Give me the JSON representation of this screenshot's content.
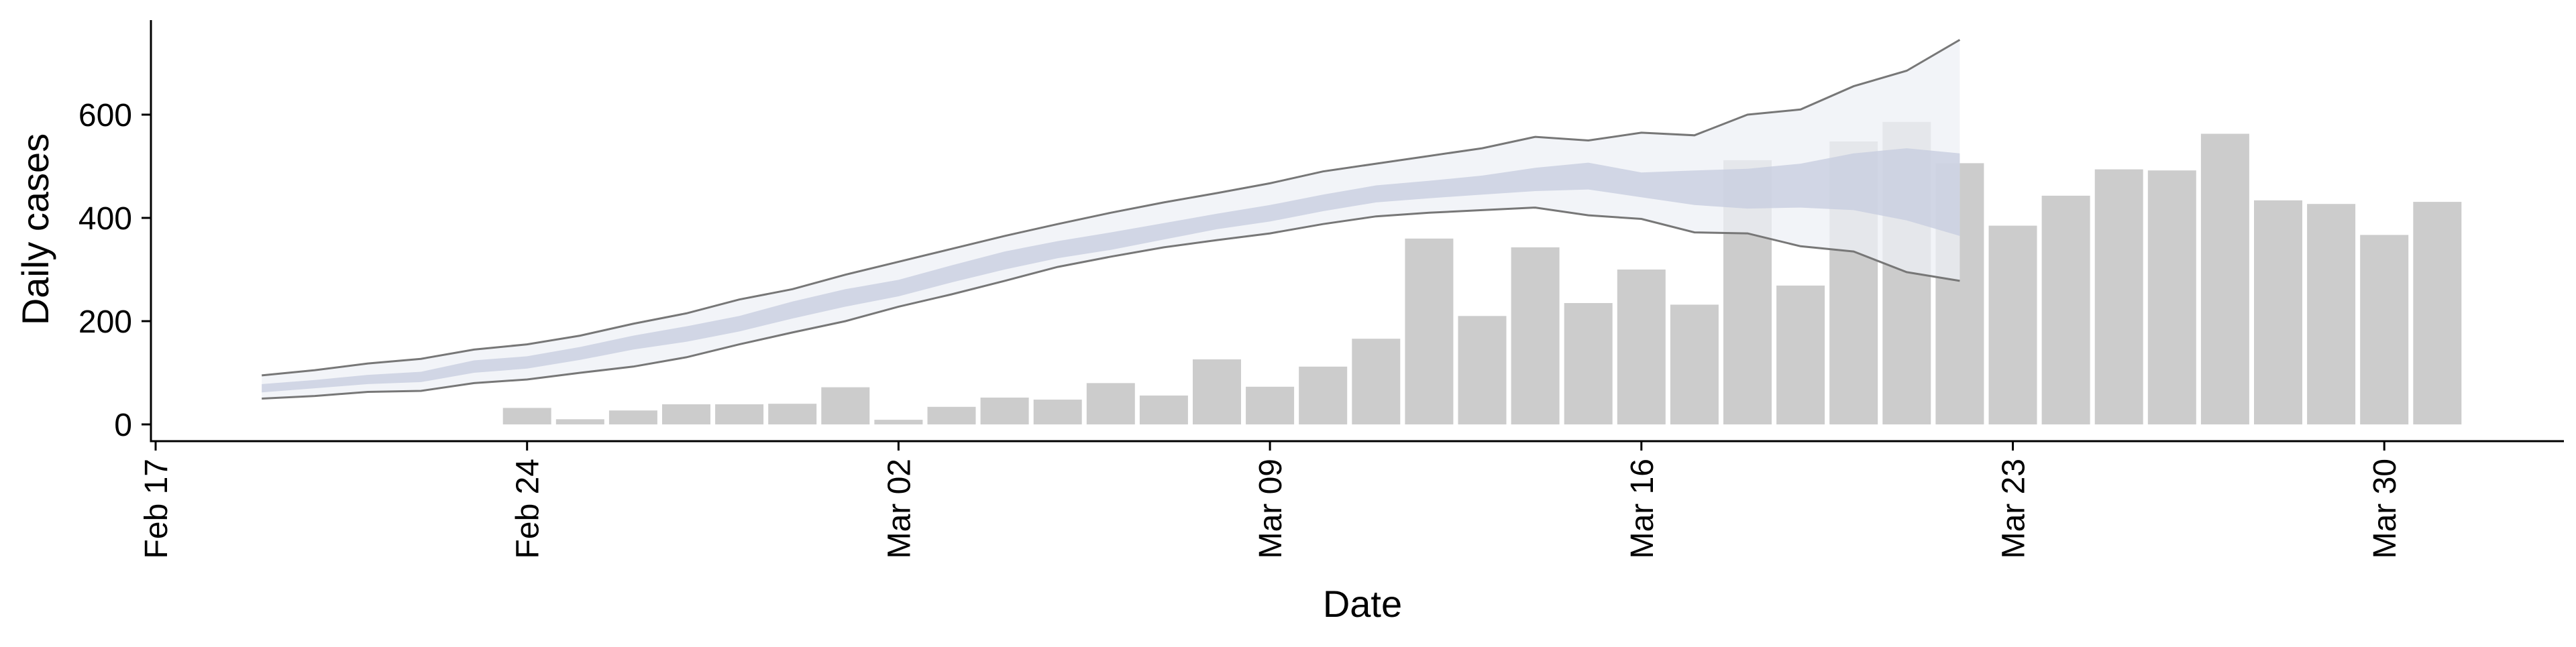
{
  "chart_data": {
    "type": "bar",
    "xlabel": "Date",
    "ylabel": "Daily cases",
    "ylim": [
      0,
      780
    ],
    "y_ticks": [
      0,
      200,
      400,
      600
    ],
    "x_ticks": [
      "Feb 17",
      "Feb 24",
      "Mar 02",
      "Mar 09",
      "Mar 16",
      "Mar 23",
      "Mar 30"
    ],
    "x_tick_dates": [
      "2020-02-17",
      "2020-02-24",
      "2020-03-02",
      "2020-03-09",
      "2020-03-16",
      "2020-03-23",
      "2020-03-30"
    ],
    "x_range": [
      "2020-02-17",
      "2020-04-03"
    ],
    "grid": false,
    "colors": {
      "bars": "#cccccc",
      "outer_band": "#eef0f6",
      "inner_band": "#c8cee0",
      "band_bounds": "#777777",
      "axis": "#000000"
    },
    "bars": {
      "dates": [
        "2020-02-24",
        "2020-02-25",
        "2020-02-26",
        "2020-02-27",
        "2020-02-28",
        "2020-02-29",
        "2020-03-01",
        "2020-03-02",
        "2020-03-03",
        "2020-03-04",
        "2020-03-05",
        "2020-03-06",
        "2020-03-07",
        "2020-03-08",
        "2020-03-09",
        "2020-03-10",
        "2020-03-11",
        "2020-03-12",
        "2020-03-13",
        "2020-03-14",
        "2020-03-15",
        "2020-03-16",
        "2020-03-17",
        "2020-03-18",
        "2020-03-19",
        "2020-03-20",
        "2020-03-21",
        "2020-03-22",
        "2020-03-23",
        "2020-03-24",
        "2020-03-25",
        "2020-03-26",
        "2020-03-27",
        "2020-03-28",
        "2020-03-29",
        "2020-03-30",
        "2020-03-31"
      ],
      "values": [
        32,
        10,
        27,
        39,
        39,
        40,
        72,
        9,
        34,
        52,
        48,
        80,
        56,
        126,
        73,
        112,
        166,
        360,
        210,
        343,
        235,
        300,
        232,
        512,
        269,
        548,
        586,
        506,
        385,
        443,
        494,
        492,
        563,
        434,
        427,
        367,
        431
      ]
    },
    "series": [
      {
        "dates": [
          "2020-02-19",
          "2020-02-20",
          "2020-02-21",
          "2020-02-22",
          "2020-02-23",
          "2020-02-24",
          "2020-02-25",
          "2020-02-26",
          "2020-02-27",
          "2020-02-28",
          "2020-02-29",
          "2020-03-01",
          "2020-03-02",
          "2020-03-03",
          "2020-03-04",
          "2020-03-05",
          "2020-03-06",
          "2020-03-07",
          "2020-03-08",
          "2020-03-09",
          "2020-03-10",
          "2020-03-11",
          "2020-03-12",
          "2020-03-13",
          "2020-03-14",
          "2020-03-15",
          "2020-03-16",
          "2020-03-17",
          "2020-03-18",
          "2020-03-19",
          "2020-03-20",
          "2020-03-21",
          "2020-03-22"
        ],
        "lower_outer": [
          50,
          55,
          63,
          65,
          80,
          87,
          100,
          112,
          130,
          155,
          178,
          200,
          228,
          252,
          278,
          305,
          325,
          343,
          357,
          370,
          388,
          403,
          410,
          415,
          420,
          405,
          398,
          372,
          370,
          345,
          335,
          295,
          278
        ],
        "lower_inner": [
          62,
          70,
          78,
          82,
          100,
          108,
          125,
          145,
          160,
          180,
          205,
          228,
          248,
          275,
          300,
          322,
          338,
          358,
          378,
          393,
          413,
          430,
          438,
          445,
          452,
          455,
          440,
          425,
          418,
          420,
          415,
          395,
          365
        ],
        "upper_inner": [
          78,
          86,
          96,
          102,
          124,
          132,
          150,
          172,
          190,
          210,
          238,
          262,
          280,
          308,
          335,
          355,
          372,
          390,
          408,
          425,
          445,
          463,
          472,
          482,
          497,
          507,
          488,
          492,
          495,
          505,
          525,
          535,
          525
        ],
        "upper_outer": [
          95,
          105,
          118,
          127,
          145,
          155,
          172,
          195,
          215,
          242,
          262,
          290,
          315,
          340,
          365,
          388,
          410,
          430,
          448,
          467,
          490,
          505,
          520,
          535,
          557,
          550,
          565,
          560,
          600,
          610,
          655,
          685,
          745
        ]
      }
    ]
  }
}
